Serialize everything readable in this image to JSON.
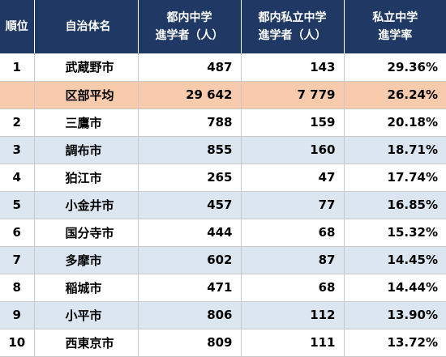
{
  "header": {
    "rank": "順位",
    "name": "自治体名",
    "public_line1": "都内中学",
    "public_line2": "進学者（人）",
    "private_line1": "都内私立中学",
    "private_line2": "進学者（人）",
    "rate_line1": "私立中学",
    "rate_line2": "進学率"
  },
  "rows": [
    {
      "rank": "1",
      "name": "武蔵野市",
      "public": "487",
      "private": "143",
      "rate": "29.36%",
      "style": "odd"
    },
    {
      "rank": "",
      "name": "区部平均",
      "public": "29 642",
      "private": "7 779",
      "rate": "26.24%",
      "style": "avg"
    },
    {
      "rank": "2",
      "name": "三鷹市",
      "public": "788",
      "private": "159",
      "rate": "20.18%",
      "style": "odd"
    },
    {
      "rank": "3",
      "name": "調布市",
      "public": "855",
      "private": "160",
      "rate": "18.71%",
      "style": "even"
    },
    {
      "rank": "4",
      "name": "狛江市",
      "public": "265",
      "private": "47",
      "rate": "17.74%",
      "style": "odd"
    },
    {
      "rank": "5",
      "name": "小金井市",
      "public": "457",
      "private": "77",
      "rate": "16.85%",
      "style": "even"
    },
    {
      "rank": "6",
      "name": "国分寺市",
      "public": "444",
      "private": "68",
      "rate": "15.32%",
      "style": "odd"
    },
    {
      "rank": "7",
      "name": "多摩市",
      "public": "602",
      "private": "87",
      "rate": "14.45%",
      "style": "even"
    },
    {
      "rank": "8",
      "name": "稲城市",
      "public": "471",
      "private": "68",
      "rate": "14.44%",
      "style": "odd"
    },
    {
      "rank": "9",
      "name": "小平市",
      "public": "806",
      "private": "112",
      "rate": "13.90%",
      "style": "even"
    },
    {
      "rank": "10",
      "name": "西東京市",
      "public": "809",
      "private": "111",
      "rate": "13.72%",
      "style": "odd"
    }
  ],
  "colors": {
    "header_bg": "#1f3864",
    "header_text": "#ffffff",
    "stripe": "#dce6f1",
    "average_highlight": "#f8cbad"
  }
}
